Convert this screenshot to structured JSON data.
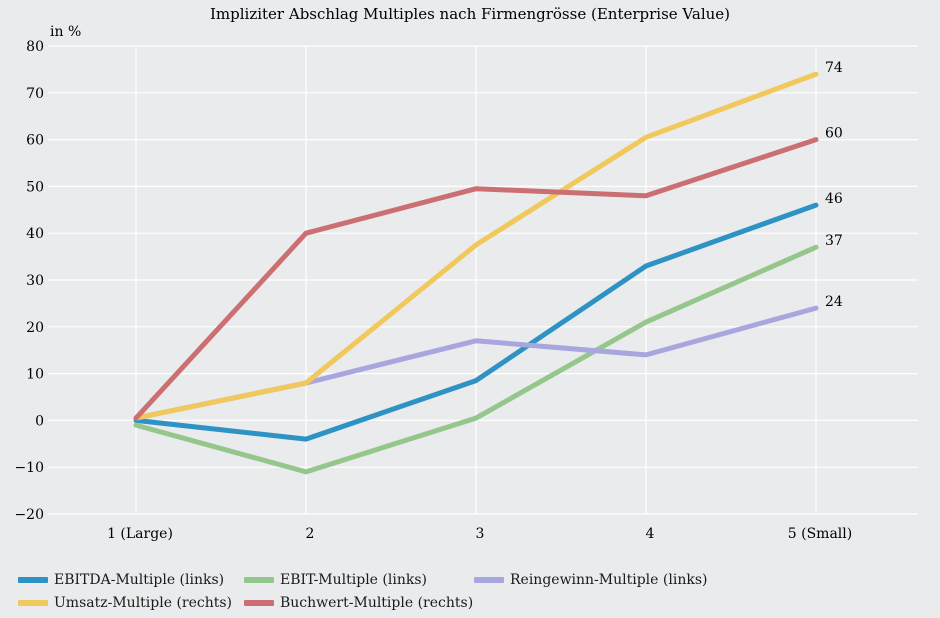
{
  "chart_data": {
    "type": "line",
    "title": "Impliziter Abschlag Multiples nach Firmengrösse (Enterprise Value)",
    "ylabel": "in %",
    "xlabel": "",
    "categories": [
      "1 (Large)",
      "2",
      "3",
      "4",
      "5 (Small)"
    ],
    "ylim": [
      -20,
      80
    ],
    "yticks": [
      80,
      70,
      60,
      50,
      40,
      30,
      20,
      10,
      0,
      -10,
      -20
    ],
    "ytick_labels": [
      "80",
      "70",
      "60",
      "50",
      "40",
      "30",
      "20",
      "10",
      "0",
      "−10",
      "−20"
    ],
    "grid": true,
    "legend_position": "bottom",
    "series": [
      {
        "name": "EBITDA-Multiple (links)",
        "color": "#2e93c4",
        "values": [
          0,
          -4,
          8.5,
          33,
          46
        ],
        "end_label": "46"
      },
      {
        "name": "EBIT-Multiple (links)",
        "color": "#95c68b",
        "values": [
          -1,
          -11,
          0.5,
          21,
          37
        ],
        "end_label": "37"
      },
      {
        "name": "Reingewinn-Multiple (links)",
        "color": "#a7a6de",
        "values": [
          0.5,
          8,
          17,
          14,
          24
        ],
        "end_label": "24"
      },
      {
        "name": "Umsatz-Multiple (rechts)",
        "color": "#f1c85c",
        "values": [
          0.5,
          8,
          37.5,
          60.5,
          74
        ],
        "end_label": "74"
      },
      {
        "name": "Buchwert-Multiple (rechts)",
        "color": "#cc6f73",
        "values": [
          0.5,
          40,
          49.5,
          48,
          60
        ],
        "end_label": "60"
      }
    ]
  }
}
